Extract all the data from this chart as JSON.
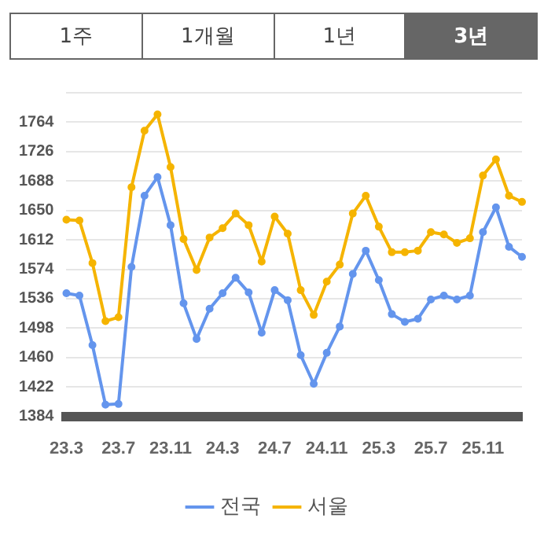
{
  "chart_data": {
    "type": "line",
    "annotations": [
      "1주",
      "1개월",
      "1년",
      "3년"
    ],
    "categories": [
      "23.3",
      null,
      null,
      null,
      "23.7",
      null,
      null,
      null,
      "23.11",
      null,
      null,
      null,
      "24.3",
      null,
      null,
      null,
      "24.7",
      null,
      null,
      null,
      "24.11",
      null,
      null,
      null,
      "25.3",
      null,
      null,
      null,
      "25.7",
      null,
      null,
      null,
      "25.11",
      null,
      null,
      null
    ],
    "series": [
      {
        "name": "전국",
        "color": "#6495ed",
        "values": [
          1543,
          1540,
          1476,
          1399,
          1400,
          1577,
          1669,
          1693,
          1631,
          1530,
          1484,
          1523,
          1543,
          1563,
          1544,
          1492,
          1547,
          1534,
          1463,
          1426,
          1466,
          1500,
          1568,
          1598,
          1560,
          1516,
          1506,
          1510,
          1535,
          1540,
          1535,
          1540,
          1622,
          1654,
          1603,
          1590
        ]
      },
      {
        "name": "서울",
        "color": "#f5b400",
        "values": [
          1638,
          1637,
          1582,
          1507,
          1512,
          1680,
          1753,
          1774,
          1706,
          1613,
          1573,
          1615,
          1627,
          1646,
          1631,
          1584,
          1642,
          1620,
          1547,
          1515,
          1558,
          1580,
          1646,
          1669,
          1629,
          1596,
          1596,
          1598,
          1622,
          1619,
          1608,
          1614,
          1695,
          1716,
          1669,
          1661
        ]
      }
    ],
    "ylim": [
      1384,
      1802
    ],
    "yticks": [
      1384,
      1422,
      1460,
      1498,
      1536,
      1574,
      1612,
      1650,
      1688,
      1726,
      1764,
      {
        "value": 1802,
        "label": null
      }
    ],
    "grid": "y",
    "legend": "bottom",
    "marker": "circle",
    "line_style": "solid"
  }
}
